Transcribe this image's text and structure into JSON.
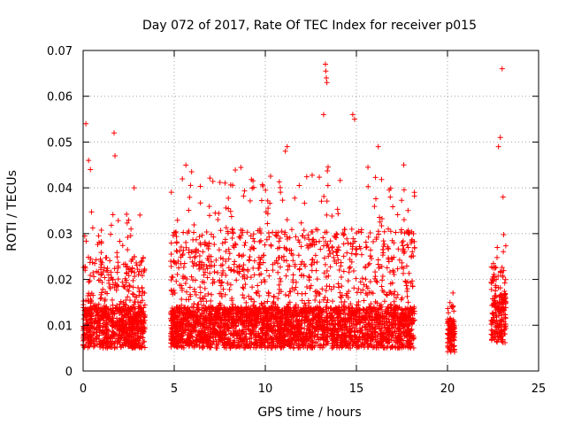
{
  "chart_data": {
    "type": "scatter",
    "title": "Day 072 of 2017, Rate Of TEC Index for receiver p015",
    "xlabel": "GPS time / hours",
    "ylabel": "ROTI / TECUs",
    "xlim": [
      0,
      25
    ],
    "ylim": [
      0,
      0.07
    ],
    "xticks": [
      "0",
      "5",
      "10",
      "15",
      "20",
      "25"
    ],
    "yticks": [
      "0",
      "0.01",
      "0.02",
      "0.03",
      "0.04",
      "0.05",
      "0.06",
      "0.07"
    ],
    "grid": true,
    "marker": "+",
    "color": "#ff0000",
    "clusters": [
      {
        "x_range": [
          0.0,
          3.4
        ],
        "y_base": 0.01,
        "y_peak": 0.035
      },
      {
        "x_range": [
          4.8,
          18.2
        ],
        "y_base": 0.01,
        "y_peak": 0.045
      },
      {
        "x_range": [
          20.0,
          20.4
        ],
        "y_base": 0.008,
        "y_peak": 0.02
      },
      {
        "x_range": [
          22.4,
          23.2
        ],
        "y_base": 0.012,
        "y_peak": 0.03
      }
    ],
    "outliers": [
      {
        "x": 0.15,
        "y": 0.054
      },
      {
        "x": 0.3,
        "y": 0.046
      },
      {
        "x": 0.4,
        "y": 0.044
      },
      {
        "x": 1.7,
        "y": 0.052
      },
      {
        "x": 1.75,
        "y": 0.047
      },
      {
        "x": 2.8,
        "y": 0.04
      },
      {
        "x": 13.2,
        "y": 0.056
      },
      {
        "x": 13.3,
        "y": 0.067
      },
      {
        "x": 13.32,
        "y": 0.0655
      },
      {
        "x": 13.35,
        "y": 0.064
      },
      {
        "x": 13.38,
        "y": 0.063
      },
      {
        "x": 14.8,
        "y": 0.056
      },
      {
        "x": 14.9,
        "y": 0.055
      },
      {
        "x": 11.2,
        "y": 0.049
      },
      {
        "x": 11.1,
        "y": 0.048
      },
      {
        "x": 16.2,
        "y": 0.049
      },
      {
        "x": 17.6,
        "y": 0.045
      },
      {
        "x": 22.8,
        "y": 0.049
      },
      {
        "x": 22.9,
        "y": 0.051
      },
      {
        "x": 23.0,
        "y": 0.066
      },
      {
        "x": 23.05,
        "y": 0.038
      }
    ]
  }
}
